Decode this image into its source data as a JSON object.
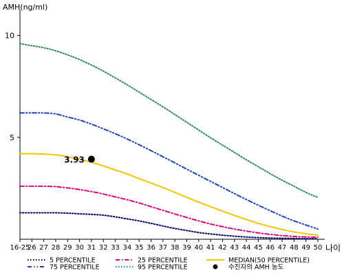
{
  "chart_data": {
    "type": "line",
    "ylabel": "AMH(ng/ml)",
    "xlabel": "나이",
    "x_categories": [
      "16-25",
      "26",
      "27",
      "28",
      "29",
      "30",
      "31",
      "32",
      "33",
      "34",
      "35",
      "36",
      "37",
      "38",
      "39",
      "40",
      "41",
      "42",
      "43",
      "44",
      "45",
      "46",
      "47",
      "48",
      "49",
      "50"
    ],
    "y_ticks": [
      5,
      10
    ],
    "ylim": [
      0,
      11
    ],
    "series": [
      {
        "name": "5 PERCENTILE",
        "color": "#000066",
        "dash": "dot",
        "values": [
          1.3,
          1.3,
          1.3,
          1.3,
          1.28,
          1.25,
          1.22,
          1.18,
          1.1,
          1.0,
          0.9,
          0.78,
          0.65,
          0.53,
          0.43,
          0.33,
          0.26,
          0.2,
          0.15,
          0.11,
          0.08,
          0.06,
          0.05,
          0.04,
          0.03,
          0.03
        ]
      },
      {
        "name": "25 PERCENTILE",
        "color": "#e0007a",
        "dash": "dashdot",
        "values": [
          2.6,
          2.6,
          2.6,
          2.58,
          2.52,
          2.44,
          2.34,
          2.22,
          2.08,
          1.94,
          1.78,
          1.6,
          1.42,
          1.24,
          1.07,
          0.9,
          0.75,
          0.62,
          0.5,
          0.4,
          0.31,
          0.24,
          0.18,
          0.14,
          0.11,
          0.1
        ]
      },
      {
        "name": "MEDIAN(50 PERCENTILE)",
        "color": "#f2c500",
        "dash": "solid",
        "values": [
          4.2,
          4.2,
          4.18,
          4.14,
          4.05,
          3.93,
          3.78,
          3.6,
          3.4,
          3.2,
          2.98,
          2.76,
          2.54,
          2.3,
          2.06,
          1.82,
          1.6,
          1.38,
          1.17,
          0.97,
          0.78,
          0.62,
          0.48,
          0.36,
          0.27,
          0.2
        ]
      },
      {
        "name": "75 PERCENTILE",
        "color": "#1f3fbf",
        "dash": "dashdotdot",
        "values": [
          6.2,
          6.2,
          6.2,
          6.15,
          6.0,
          5.85,
          5.65,
          5.42,
          5.18,
          4.92,
          4.64,
          4.35,
          4.05,
          3.75,
          3.44,
          3.14,
          2.84,
          2.54,
          2.24,
          1.95,
          1.67,
          1.4,
          1.14,
          0.9,
          0.7,
          0.5
        ]
      },
      {
        "name": "95 PERCENTILE",
        "color": "#2e8b57",
        "dash": "dot",
        "values": [
          9.6,
          9.5,
          9.4,
          9.25,
          9.05,
          8.82,
          8.55,
          8.25,
          7.92,
          7.58,
          7.22,
          6.86,
          6.5,
          6.12,
          5.74,
          5.36,
          4.98,
          4.62,
          4.26,
          3.9,
          3.56,
          3.22,
          2.9,
          2.6,
          2.3,
          2.05
        ]
      }
    ],
    "point": {
      "name": "수진자의 AMH 농도",
      "x": "31",
      "y": 3.93,
      "label": "3.93"
    },
    "legend_position": "bottom"
  }
}
